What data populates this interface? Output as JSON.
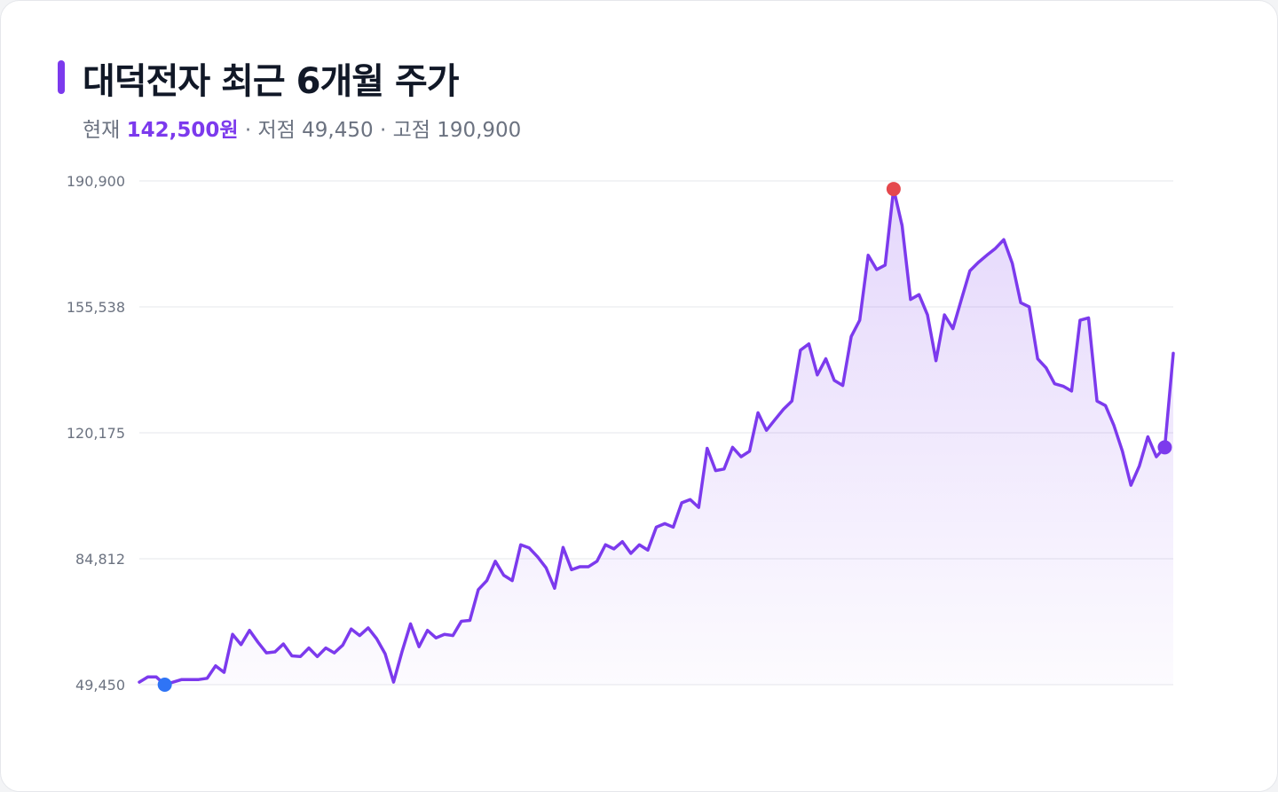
{
  "title": "대덕전자 최근 6개월 주가",
  "subtitle": {
    "current_label": "현재",
    "current_value": "142,500원",
    "sep1": "·",
    "low_label": "저점",
    "low_value": "49,450",
    "sep2": "·",
    "high_label": "고점",
    "high_value": "190,900"
  },
  "colors": {
    "line": "#7c3aed",
    "area_top": "#7c3aed",
    "min_marker": "#2f74f5",
    "max_marker": "#e5484d",
    "last_marker": "#7c3aed",
    "grid": "#e5e7eb"
  },
  "chart_data": {
    "type": "area",
    "ylim": [
      49450,
      190900
    ],
    "yticks": [
      {
        "value": 190900,
        "label": "190,900"
      },
      {
        "value": 155538,
        "label": "155,538"
      },
      {
        "value": 120175,
        "label": "120,175"
      },
      {
        "value": 84812,
        "label": "84,812"
      },
      {
        "value": 49450,
        "label": "49,450"
      }
    ],
    "grid": true,
    "markers": {
      "min_index": 3,
      "max_index": 89,
      "last_index": 121
    },
    "series": [
      {
        "values": [
          50174,
          51618,
          51618,
          49450,
          50174,
          50897,
          50897,
          50897,
          51241,
          54754,
          52917,
          63593,
          60700,
          64704,
          61355,
          58375,
          58653,
          60886,
          57551,
          57344,
          59749,
          57345,
          59749,
          58375,
          60544,
          65082,
          63246,
          65403,
          62364,
          58130,
          50174,
          58765,
          66526,
          60112,
          64704,
          62594,
          63593,
          63246,
          67272,
          67511,
          76154,
          78671,
          84112,
          80180,
          78671,
          88735,
          87856,
          85320,
          82233,
          76518,
          87982,
          81734,
          82580,
          82580,
          84111,
          88735,
          87584,
          89614,
          86317,
          88735,
          87233,
          93694,
          94682,
          93694,
          100519,
          101436,
          99220,
          115811,
          109555,
          110017,
          116101,
          113453,
          115000,
          125815,
          120868,
          123870,
          126768,
          129104,
          143357,
          145138,
          136424,
          140967,
          134900,
          133464,
          147220,
          151797,
          170032,
          166017,
          167266,
          188640,
          178373,
          157617,
          158977,
          153276,
          140423,
          153276,
          149429,
          157617,
          165654,
          168017,
          170032,
          171923,
          174404,
          167790,
          156710,
          155538,
          140967,
          138386,
          133945,
          133271,
          131914,
          151797,
          152439,
          129104,
          127811,
          122200,
          115000,
          105453,
          110887,
          119058,
          113453,
          116101,
          142500
        ]
      }
    ]
  }
}
